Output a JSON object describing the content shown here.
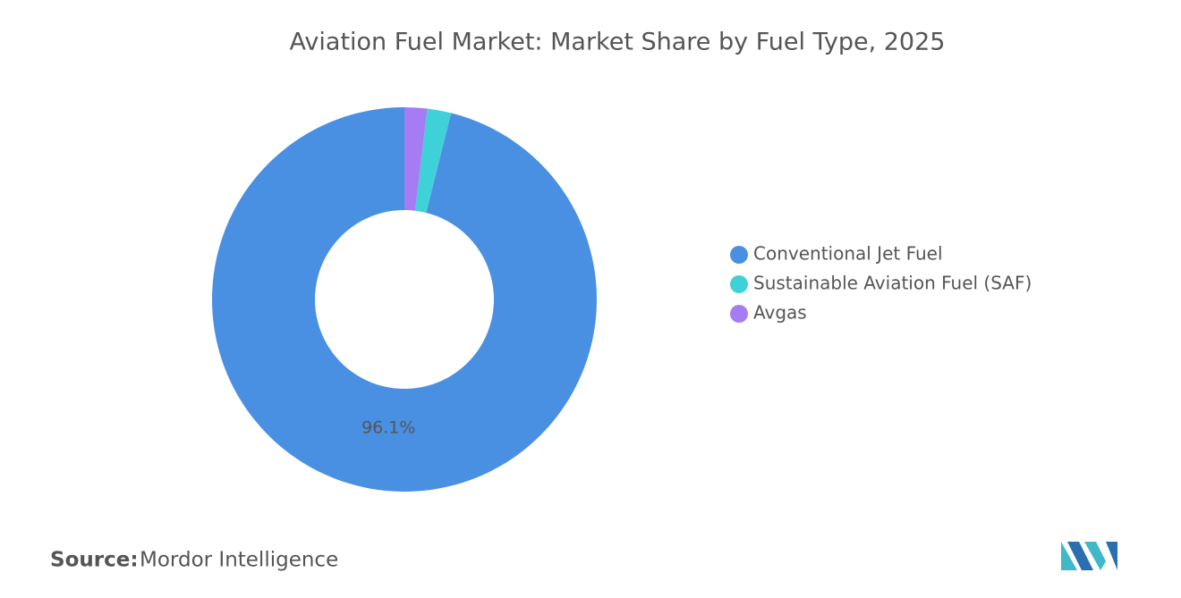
{
  "chart_data": {
    "type": "pie",
    "title": "Aviation Fuel Market: Market Share by Fuel Type, 2025",
    "categories": [
      "Conventional Jet Fuel",
      "Sustainable Aviation Fuel (SAF)",
      "Avgas"
    ],
    "values": [
      96.1,
      2.0,
      1.9
    ],
    "value_labels": [
      "96.1%",
      null,
      null
    ],
    "colors": [
      "#4a90e2",
      "#3fd1d8",
      "#a67cf2"
    ],
    "legend": "right"
  },
  "source": {
    "label": "Source:",
    "name": "Mordor Intelligence"
  }
}
